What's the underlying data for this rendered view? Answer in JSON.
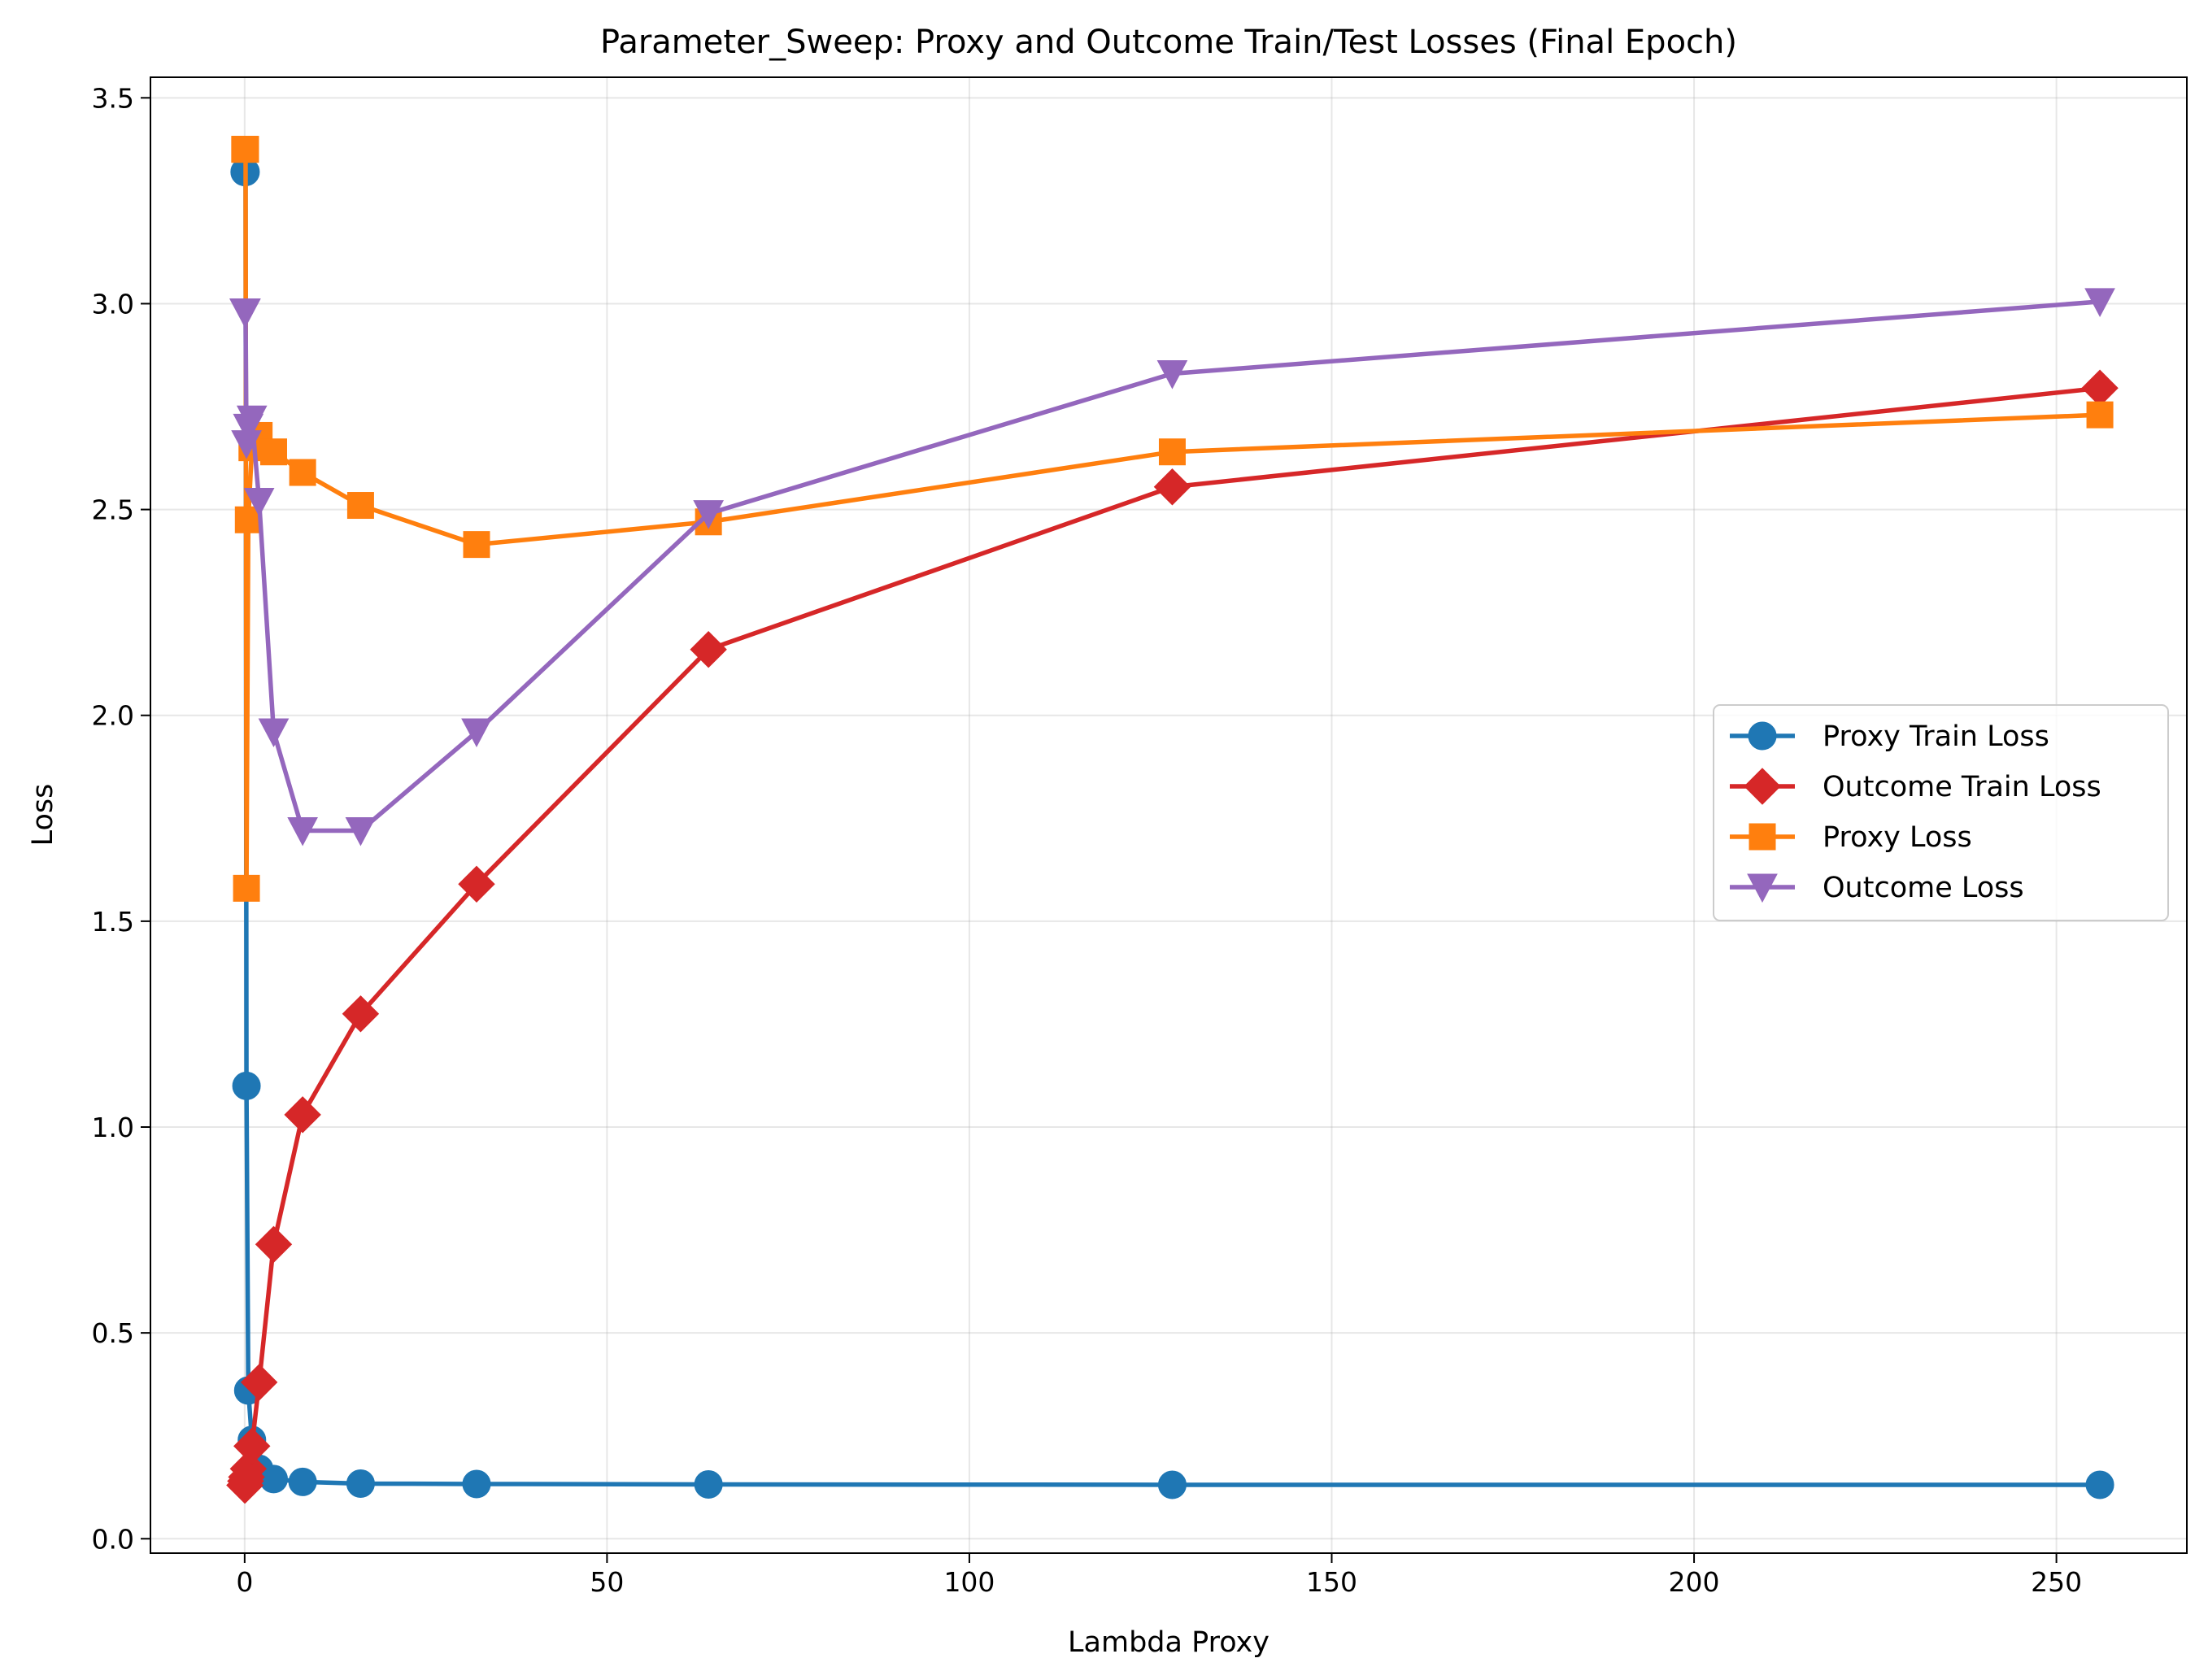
{
  "chart_data": {
    "type": "line",
    "title": "Parameter_Sweep: Proxy and Outcome Train/Test Losses (Final Epoch)",
    "xlabel": "Lambda Proxy",
    "ylabel": "Loss",
    "xlim": [
      -13,
      268
    ],
    "ylim": [
      -0.035,
      3.55
    ],
    "xticks": [
      0,
      50,
      100,
      150,
      200,
      250
    ],
    "xtick_labels": [
      "0",
      "50",
      "100",
      "150",
      "200",
      "250"
    ],
    "yticks": [
      0.0,
      0.5,
      1.0,
      1.5,
      2.0,
      2.5,
      3.0,
      3.5
    ],
    "ytick_labels": [
      "0.0",
      "0.5",
      "1.0",
      "1.5",
      "2.0",
      "2.5",
      "3.0",
      "3.5"
    ],
    "grid": true,
    "legend_position": "center-right",
    "x": [
      0,
      0.0625,
      0.125,
      0.25,
      0.5,
      1,
      2,
      4,
      8,
      16,
      32,
      64,
      128,
      256
    ],
    "series": [
      {
        "name": "Proxy Train Loss",
        "color": "#1f77b4",
        "marker": "circle",
        "values": [
          3.32,
          3.32,
          3.32,
          1.1,
          0.36,
          0.24,
          0.17,
          0.145,
          0.138,
          0.134,
          0.133,
          0.132,
          0.131,
          0.131
        ]
      },
      {
        "name": "Outcome Train Loss",
        "color": "#d62728",
        "marker": "diamond",
        "values": [
          0.13,
          0.13,
          0.14,
          0.15,
          0.17,
          0.225,
          0.38,
          0.715,
          1.03,
          1.275,
          1.59,
          2.16,
          2.555,
          2.795
        ]
      },
      {
        "name": "Proxy Loss",
        "color": "#ff7f0e",
        "marker": "square",
        "values": [
          3.375,
          3.375,
          3.375,
          1.58,
          2.475,
          2.65,
          2.68,
          2.64,
          2.59,
          2.51,
          2.415,
          2.47,
          2.64,
          2.73
        ]
      },
      {
        "name": "Outcome Loss",
        "color": "#9467bd",
        "marker": "triangle-down",
        "values": [
          2.98,
          2.98,
          2.98,
          2.66,
          2.7,
          2.72,
          2.52,
          1.96,
          1.72,
          1.72,
          1.96,
          2.49,
          2.83,
          3.005
        ]
      }
    ]
  }
}
